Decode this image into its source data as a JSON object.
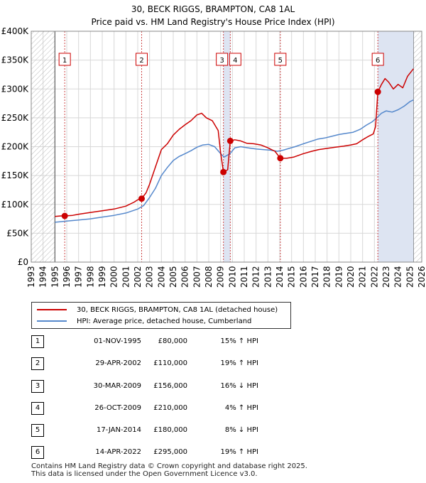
{
  "chart_data": {
    "type": "line",
    "title": "30, BECK RIGGS, BRAMPTON, CA8 1AL",
    "subtitle": "Price paid vs. HM Land Registry's House Price Index (HPI)",
    "xlim": [
      1993,
      2026
    ],
    "ylim": [
      0,
      400000
    ],
    "y_ticks": [
      {
        "value": 0,
        "label": "£0"
      },
      {
        "value": 50000,
        "label": "£50K"
      },
      {
        "value": 100000,
        "label": "£100K"
      },
      {
        "value": 150000,
        "label": "£150K"
      },
      {
        "value": 200000,
        "label": "£200K"
      },
      {
        "value": 250000,
        "label": "£250K"
      },
      {
        "value": 300000,
        "label": "£300K"
      },
      {
        "value": 350000,
        "label": "£350K"
      },
      {
        "value": 400000,
        "label": "£400K"
      }
    ],
    "x_ticks": [
      "1993",
      "1994",
      "1995",
      "1996",
      "1997",
      "1998",
      "1999",
      "2000",
      "2001",
      "2002",
      "2003",
      "2004",
      "2005",
      "2006",
      "2007",
      "2008",
      "2009",
      "2010",
      "2011",
      "2012",
      "2013",
      "2014",
      "2015",
      "2016",
      "2017",
      "2018",
      "2019",
      "2020",
      "2021",
      "2022",
      "2023",
      "2024",
      "2025",
      "2026"
    ],
    "data_start": 1995.0,
    "data_end": 2025.3,
    "series": [
      {
        "name": "30, BECK RIGGS, BRAMPTON, CA8 1AL (detached house)",
        "color": "#cc0000",
        "points": [
          [
            1995.0,
            79000
          ],
          [
            1995.5,
            80000
          ],
          [
            1995.83,
            80000
          ],
          [
            1996.5,
            81000
          ],
          [
            1997,
            83000
          ],
          [
            1998,
            86000
          ],
          [
            1999,
            89000
          ],
          [
            2000,
            92000
          ],
          [
            2001,
            97000
          ],
          [
            2001.7,
            104000
          ],
          [
            2002.0,
            108000
          ],
          [
            2002.33,
            110000
          ],
          [
            2002.7,
            120000
          ],
          [
            2003,
            135000
          ],
          [
            2003.5,
            165000
          ],
          [
            2004,
            195000
          ],
          [
            2004.5,
            205000
          ],
          [
            2005,
            220000
          ],
          [
            2005.5,
            230000
          ],
          [
            2006,
            238000
          ],
          [
            2006.5,
            245000
          ],
          [
            2007,
            255000
          ],
          [
            2007.4,
            258000
          ],
          [
            2007.8,
            250000
          ],
          [
            2008.3,
            245000
          ],
          [
            2008.8,
            228000
          ],
          [
            2009.0,
            190000
          ],
          [
            2009.24,
            156000
          ],
          [
            2009.6,
            160000
          ],
          [
            2009.82,
            210000
          ],
          [
            2010.2,
            212000
          ],
          [
            2010.7,
            210000
          ],
          [
            2011.2,
            206000
          ],
          [
            2011.8,
            205000
          ],
          [
            2012.4,
            203000
          ],
          [
            2013.0,
            198000
          ],
          [
            2013.6,
            192000
          ],
          [
            2014.05,
            180000
          ],
          [
            2014.6,
            180000
          ],
          [
            2015.2,
            182000
          ],
          [
            2016.0,
            188000
          ],
          [
            2016.7,
            192000
          ],
          [
            2017.3,
            195000
          ],
          [
            2018.0,
            197000
          ],
          [
            2018.7,
            199000
          ],
          [
            2019.4,
            201000
          ],
          [
            2020.0,
            203000
          ],
          [
            2020.5,
            205000
          ],
          [
            2021.0,
            212000
          ],
          [
            2021.5,
            218000
          ],
          [
            2021.9,
            222000
          ],
          [
            2022.1,
            235000
          ],
          [
            2022.29,
            295000
          ],
          [
            2022.6,
            308000
          ],
          [
            2022.9,
            318000
          ],
          [
            2023.2,
            312000
          ],
          [
            2023.6,
            300000
          ],
          [
            2024.0,
            308000
          ],
          [
            2024.4,
            302000
          ],
          [
            2024.8,
            322000
          ],
          [
            2025.3,
            335000
          ]
        ]
      },
      {
        "name": "HPI: Average price, detached house, Cumberland",
        "color": "#5588cc",
        "points": [
          [
            1995.0,
            69000
          ],
          [
            1995.5,
            70000
          ],
          [
            1996,
            71000
          ],
          [
            1997,
            73000
          ],
          [
            1998,
            75000
          ],
          [
            1999,
            78000
          ],
          [
            2000,
            81000
          ],
          [
            2001,
            85000
          ],
          [
            2002,
            92000
          ],
          [
            2002.5,
            98000
          ],
          [
            2003,
            112000
          ],
          [
            2003.5,
            128000
          ],
          [
            2004,
            150000
          ],
          [
            2004.5,
            164000
          ],
          [
            2005,
            176000
          ],
          [
            2005.5,
            183000
          ],
          [
            2006,
            188000
          ],
          [
            2006.5,
            193000
          ],
          [
            2007,
            199000
          ],
          [
            2007.5,
            203000
          ],
          [
            2008,
            204000
          ],
          [
            2008.5,
            200000
          ],
          [
            2009.0,
            188000
          ],
          [
            2009.3,
            182000
          ],
          [
            2009.8,
            188000
          ],
          [
            2010.2,
            198000
          ],
          [
            2010.7,
            200000
          ],
          [
            2011.3,
            198000
          ],
          [
            2012,
            196000
          ],
          [
            2012.6,
            195000
          ],
          [
            2013.2,
            194000
          ],
          [
            2013.8,
            192000
          ],
          [
            2014.3,
            194000
          ],
          [
            2014.8,
            197000
          ],
          [
            2015.3,
            200000
          ],
          [
            2016,
            205000
          ],
          [
            2016.6,
            209000
          ],
          [
            2017.2,
            213000
          ],
          [
            2017.8,
            215000
          ],
          [
            2018.4,
            218000
          ],
          [
            2019,
            221000
          ],
          [
            2019.6,
            223000
          ],
          [
            2020.2,
            225000
          ],
          [
            2020.8,
            230000
          ],
          [
            2021.3,
            237000
          ],
          [
            2021.8,
            243000
          ],
          [
            2022.2,
            250000
          ],
          [
            2022.6,
            258000
          ],
          [
            2023.0,
            262000
          ],
          [
            2023.5,
            260000
          ],
          [
            2024.0,
            264000
          ],
          [
            2024.5,
            270000
          ],
          [
            2025.0,
            278000
          ],
          [
            2025.3,
            281000
          ]
        ]
      }
    ],
    "sales": [
      {
        "num": "1",
        "x": 1995.83,
        "price": 80000,
        "date": "01-NOV-1995",
        "price_label": "£80,000",
        "hpi": "15% ↑ HPI"
      },
      {
        "num": "2",
        "x": 2002.33,
        "price": 110000,
        "date": "29-APR-2002",
        "price_label": "£110,000",
        "hpi": "19% ↑ HPI"
      },
      {
        "num": "3",
        "x": 2009.24,
        "price": 156000,
        "date": "30-MAR-2009",
        "price_label": "£156,000",
        "hpi": "16% ↓ HPI"
      },
      {
        "num": "4",
        "x": 2009.82,
        "price": 210000,
        "date": "26-OCT-2009",
        "price_label": "£210,000",
        "hpi": "4% ↑ HPI"
      },
      {
        "num": "5",
        "x": 2014.05,
        "price": 180000,
        "date": "17-JAN-2014",
        "price_label": "£180,000",
        "hpi": "8% ↓ HPI"
      },
      {
        "num": "6",
        "x": 2022.29,
        "price": 295000,
        "date": "14-APR-2022",
        "price_label": "£295,000",
        "hpi": "19% ↑ HPI"
      }
    ]
  },
  "legend": {
    "property_label": "30, BECK RIGGS, BRAMPTON, CA8 1AL (detached house)",
    "hpi_label": "HPI: Average price, detached house, Cumberland"
  },
  "footer": {
    "line1": "Contains HM Land Registry data © Crown copyright and database right 2025.",
    "line2": "This data is licensed under the Open Government Licence v3.0."
  },
  "colors": {
    "property": "#cc0000",
    "hpi": "#5588cc",
    "shade": "#dde4f2",
    "event_line": "#cc4444"
  }
}
